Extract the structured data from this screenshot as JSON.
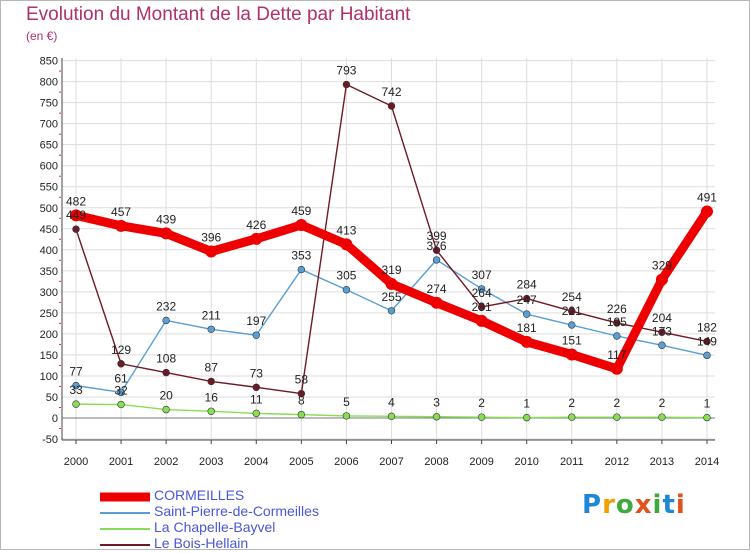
{
  "chart_data": {
    "type": "line",
    "title": "Evolution du Montant de la Dette par Habitant",
    "subtitle": "(en €)",
    "xlabel": "",
    "ylabel": "",
    "ylim": [
      -50,
      850
    ],
    "yticks": [
      -50,
      0,
      50,
      100,
      150,
      200,
      250,
      300,
      350,
      400,
      450,
      500,
      550,
      600,
      650,
      700,
      750,
      800,
      850
    ],
    "x": [
      "2000",
      "2001",
      "2002",
      "2003",
      "2004",
      "2005",
      "2006",
      "2007",
      "2008",
      "2009",
      "2010",
      "2011",
      "2012",
      "2013",
      "2014"
    ],
    "series": [
      {
        "name": "CORMEILLES",
        "color": "#ee0000",
        "values": [
          482,
          457,
          439,
          396,
          426,
          459,
          413,
          319,
          274,
          231,
          181,
          151,
          117,
          329,
          491
        ]
      },
      {
        "name": "Saint-Pierre-de-Cormeilles",
        "color": "#5a9fd4",
        "values": [
          77,
          61,
          232,
          211,
          197,
          353,
          305,
          255,
          376,
          307,
          247,
          221,
          195,
          173,
          149
        ]
      },
      {
        "name": "La Chapelle-Bayvel",
        "color": "#88dd55",
        "values": [
          33,
          32,
          20,
          16,
          11,
          8,
          5,
          4,
          3,
          2,
          1,
          2,
          2,
          2,
          1
        ]
      },
      {
        "name": "Le Bois-Hellain",
        "color": "#6e1a24",
        "values": [
          449,
          129,
          108,
          87,
          73,
          58,
          793,
          742,
          399,
          264,
          284,
          254,
          226,
          204,
          182
        ]
      }
    ]
  },
  "brand": {
    "text": "Proxiti"
  }
}
